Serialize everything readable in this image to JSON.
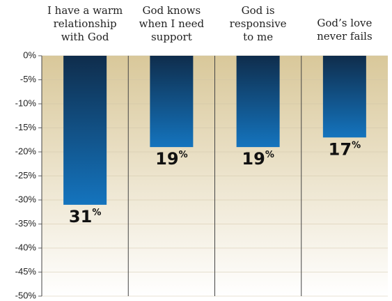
{
  "chart_data": {
    "type": "bar",
    "categories": [
      [
        "I have a warm",
        "relationship",
        "with God"
      ],
      [
        "God knows",
        "when I need",
        "support"
      ],
      [
        "God is",
        "responsive",
        "to me"
      ],
      [
        "God’s love",
        "never fails"
      ]
    ],
    "values": [
      -31,
      -19,
      -19,
      -17
    ],
    "value_labels": [
      "31%",
      "19%",
      "19%",
      "17%"
    ],
    "ylim": [
      -50,
      0
    ],
    "yticks": [
      {
        "value": 0,
        "label": "0%"
      },
      {
        "value": -5,
        "label": "-5%"
      },
      {
        "value": -10,
        "label": "-10%"
      },
      {
        "value": -15,
        "label": "-15%"
      },
      {
        "value": -20,
        "label": "-20%"
      },
      {
        "value": -25,
        "label": "-25%"
      },
      {
        "value": -30,
        "label": "-30%"
      },
      {
        "value": -35,
        "label": "-35%"
      },
      {
        "value": -40,
        "label": "-40%"
      },
      {
        "value": -45,
        "label": "-45%"
      },
      {
        "value": -50,
        "label": "-50%"
      }
    ],
    "grid": true
  }
}
